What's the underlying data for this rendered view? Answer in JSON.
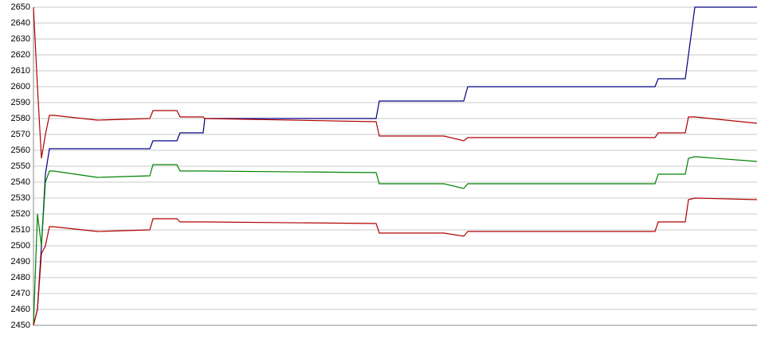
{
  "chart_data": {
    "type": "line",
    "x": [
      0,
      5,
      10,
      15,
      20,
      25,
      80,
      146,
      150,
      180,
      184,
      213,
      215,
      430,
      434,
      515,
      540,
      545,
      780,
      784,
      818,
      822,
      830,
      908
    ],
    "xlim": [
      0,
      908
    ],
    "ylim": [
      2450,
      2650
    ],
    "yticks": [
      2450,
      2460,
      2470,
      2480,
      2490,
      2500,
      2510,
      2520,
      2530,
      2540,
      2550,
      2560,
      2570,
      2580,
      2590,
      2600,
      2610,
      2620,
      2630,
      2640,
      2650
    ],
    "grid": true,
    "series": [
      {
        "color": "#000080",
        "values": [
          2450,
          2460,
          2500,
          2545,
          2561,
          2561,
          2561,
          2561,
          2566,
          2566,
          2571,
          2571,
          2580,
          2580,
          2591,
          2591,
          2591,
          2600,
          2600,
          2605,
          2605,
          2620,
          2650,
          2650
        ]
      },
      {
        "color": "#b00000",
        "values": [
          2650,
          2600,
          2555,
          2570,
          2582,
          2582,
          2579,
          2580,
          2585,
          2585,
          2581,
          2581,
          2580,
          2578,
          2569,
          2569,
          2566,
          2568,
          2568,
          2571,
          2571,
          2581,
          2581,
          2577
        ]
      },
      {
        "color": "#008000",
        "values": [
          2450,
          2520,
          2500,
          2540,
          2547,
          2547,
          2543,
          2544,
          2551,
          2551,
          2547,
          2547,
          2547,
          2546,
          2539,
          2539,
          2536,
          2539,
          2539,
          2545,
          2545,
          2555,
          2556,
          2553
        ]
      },
      {
        "color": "#b00000",
        "values": [
          2450,
          2460,
          2495,
          2500,
          2512,
          2512,
          2509,
          2510,
          2517,
          2517,
          2515,
          2515,
          2515,
          2514,
          2508,
          2508,
          2506,
          2509,
          2509,
          2515,
          2515,
          2529,
          2530,
          2529
        ]
      }
    ]
  }
}
